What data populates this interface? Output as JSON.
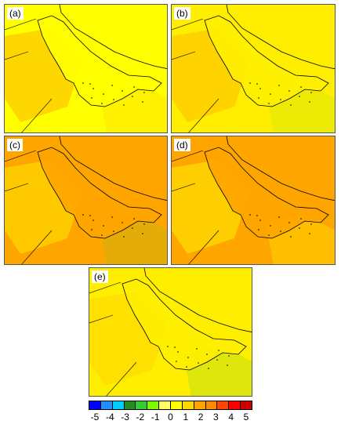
{
  "panels": [
    {
      "id": "a",
      "label": "(a)",
      "base": "#ffff00",
      "patches": [
        [
          "#ffd700",
          0.55
        ],
        [
          "#ffe600",
          0.3
        ]
      ]
    },
    {
      "id": "b",
      "label": "(b)",
      "base": "#ffee00",
      "patches": [
        [
          "#ffcc00",
          0.45
        ],
        [
          "#33cc33",
          0.05
        ]
      ]
    },
    {
      "id": "c",
      "label": "(c)",
      "base": "#ffa500",
      "patches": [
        [
          "#ffd700",
          0.4
        ],
        [
          "#66cc33",
          0.1
        ]
      ]
    },
    {
      "id": "d",
      "label": "(d)",
      "base": "#ffa500",
      "patches": [
        [
          "#ffd700",
          0.45
        ],
        [
          "#ffee00",
          0.2
        ]
      ]
    },
    {
      "id": "e",
      "label": "(e)",
      "base": "#ffee00",
      "patches": [
        [
          "#ffd700",
          0.35
        ],
        [
          "#66cc33",
          0.12
        ]
      ]
    }
  ],
  "colorbar": {
    "colors": [
      "#0000ff",
      "#1e90ff",
      "#00ccff",
      "#228b22",
      "#32cd32",
      "#7cfc00",
      "#ffff66",
      "#ffff00",
      "#ffd700",
      "#ffa500",
      "#ff8c00",
      "#ff4500",
      "#ff0000",
      "#cc0000"
    ],
    "ticks": [
      "-5",
      "-4",
      "-3",
      "-2",
      "-1",
      "0",
      "1",
      "2",
      "3",
      "4",
      "5"
    ]
  }
}
